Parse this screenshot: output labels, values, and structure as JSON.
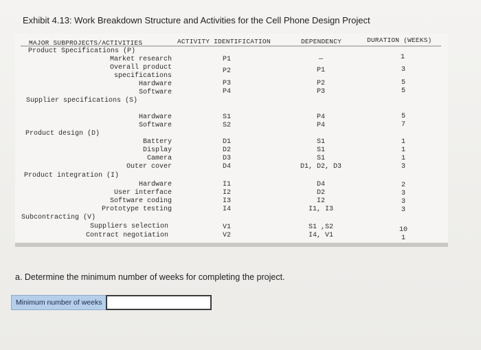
{
  "title": "Exhibit 4.13: Work Breakdown Structure and Activities for the Cell Phone Design Project",
  "headers": {
    "subprojects": "MAJOR SUBPROJECTS/ACTIVITIES",
    "activity": "ACTIVITY IDENTIFICATION",
    "dependency": "DEPENDENCY",
    "duration": "DURATION (WEEKS)"
  },
  "groups": {
    "g0": "Product Specifications (P)",
    "g1": "Supplier specifications (S)",
    "g2": "Product design (D)",
    "g3": "Product integration (I)",
    "g4": "Subcontracting (V)"
  },
  "rows": [
    {
      "name": "Market research",
      "id": "P1",
      "dep": "—",
      "dur": "1"
    },
    {
      "name": "Overall product",
      "name2": "specifications",
      "id": "P2",
      "dep": "P1",
      "dur": "3"
    },
    {
      "name": "Hardware",
      "id": "P3",
      "dep": "P2",
      "dur": "5"
    },
    {
      "name": "Software",
      "id": "P4",
      "dep": "P3",
      "dur": "5"
    },
    {
      "name": "Hardware",
      "id": "S1",
      "dep": "P4",
      "dur": "5"
    },
    {
      "name": "Software",
      "id": "S2",
      "dep": "P4",
      "dur": "7"
    },
    {
      "name": "Battery",
      "id": "D1",
      "dep": "S1",
      "dur": "1"
    },
    {
      "name": "Display",
      "id": "D2",
      "dep": "S1",
      "dur": "1"
    },
    {
      "name": "Camera",
      "id": "D3",
      "dep": "S1",
      "dur": "1"
    },
    {
      "name": "Outer cover",
      "id": "D4",
      "dep": "D1, D2, D3",
      "dur": "3"
    },
    {
      "name": "Hardware",
      "id": "I1",
      "dep": "D4",
      "dur": "2"
    },
    {
      "name": "User interface",
      "id": "I2",
      "dep": "D2",
      "dur": "3"
    },
    {
      "name": "Software coding",
      "id": "I3",
      "dep": "I2",
      "dur": "3"
    },
    {
      "name": "Prototype testing",
      "id": "I4",
      "dep": "I1, I3",
      "dur": "3"
    },
    {
      "name": "Suppliers selection",
      "id": "V1",
      "dep": "S1 ,S2",
      "dur": "10"
    },
    {
      "name": "Contract negotiation",
      "id": "V2",
      "dep": "I4, V1",
      "dur": "1"
    }
  ],
  "question": "a. Determine the minimum number of weeks for completing the project.",
  "answer": {
    "label": "Minimum number of weeks",
    "value": ""
  }
}
